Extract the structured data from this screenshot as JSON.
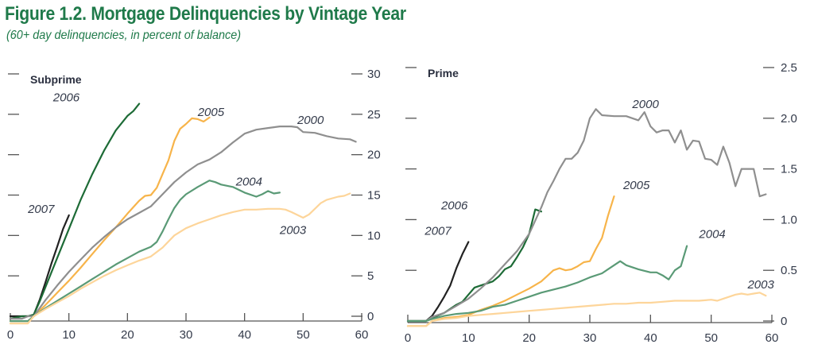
{
  "title": "Figure 1.2. Mortgage Delinquencies by Vintage Year",
  "subtitle": "(60+ day delinquencies, in percent of balance)",
  "colors": {
    "title": "#1f7a4a",
    "2000": "#8f8f8f",
    "2003": "#fdd59a",
    "2004": "#5a9a76",
    "2005": "#f7b44a",
    "2006": "#1d6b36",
    "2007": "#222222"
  },
  "chart_data": [
    {
      "type": "line",
      "title": "Subprime",
      "xlabel": "",
      "ylabel": "",
      "xlim": [
        0,
        60
      ],
      "ylim": [
        0,
        30
      ],
      "x_ticks": [
        0,
        10,
        20,
        30,
        40,
        50,
        60
      ],
      "y_ticks": [
        0,
        5,
        10,
        15,
        20,
        25,
        30
      ],
      "y_tick_labels": [
        "0",
        "5",
        "10",
        "15",
        "20",
        "25",
        "30"
      ],
      "grid": false,
      "series": [
        {
          "name": "2007",
          "label_at": [
            3,
            12.8
          ],
          "x": [
            0,
            2,
            3,
            4,
            5,
            6,
            7,
            8,
            9,
            10
          ],
          "y": [
            0,
            0,
            0,
            0.2,
            2,
            4.2,
            6.5,
            8.6,
            10.8,
            12.5
          ]
        },
        {
          "name": "2006",
          "label_at": [
            7.3,
            26.6
          ],
          "x": [
            0,
            2,
            3,
            4,
            5,
            6,
            8,
            10,
            12,
            14,
            16,
            18,
            20,
            21,
            22
          ],
          "y": [
            -0.3,
            0,
            0,
            0.2,
            1.8,
            3.6,
            7.2,
            10.8,
            14.4,
            17.6,
            20.5,
            23,
            24.8,
            25.4,
            26.3
          ]
        },
        {
          "name": "2005",
          "label_at": [
            32,
            24.8
          ],
          "x": [
            0,
            2,
            3,
            4,
            6,
            8,
            10,
            12,
            14,
            16,
            18,
            20,
            22,
            23,
            24,
            25,
            26,
            27,
            28,
            29,
            30,
            31,
            32,
            33,
            34
          ],
          "y": [
            -0.6,
            -0.6,
            -0.6,
            0,
            1.4,
            2.9,
            4.4,
            6,
            7.7,
            9.4,
            11,
            12.7,
            14.3,
            14.9,
            15,
            15.9,
            17.6,
            19.3,
            21.7,
            23.2,
            23.8,
            24.5,
            24.4,
            24.1,
            24.6
          ]
        },
        {
          "name": "2000",
          "label_at": [
            49,
            23.8
          ],
          "x": [
            0,
            2,
            3,
            4,
            6,
            8,
            10,
            12,
            14,
            16,
            18,
            20,
            22,
            24,
            26,
            28,
            30,
            32,
            34,
            36,
            38,
            40,
            42,
            44,
            46,
            48,
            49,
            50,
            52,
            54,
            56,
            58,
            59
          ],
          "y": [
            -0.3,
            -0.3,
            0,
            0,
            2,
            3.8,
            5.5,
            7,
            8.5,
            9.8,
            11,
            12,
            12.8,
            13.6,
            15.1,
            16.6,
            17.8,
            18.8,
            19.4,
            20.3,
            21.5,
            22.6,
            23.1,
            23.3,
            23.5,
            23.5,
            23.4,
            22.8,
            22.7,
            22.3,
            22,
            21.9,
            21.6
          ]
        },
        {
          "name": "2004",
          "label_at": [
            38.5,
            16.2
          ],
          "x": [
            0,
            2,
            3,
            4,
            6,
            8,
            10,
            12,
            14,
            16,
            18,
            20,
            22,
            24,
            25,
            26,
            27,
            28,
            29,
            30,
            32,
            34,
            35,
            36,
            38,
            40,
            42,
            43,
            44,
            45,
            46
          ],
          "y": [
            -0.6,
            -0.6,
            -0.6,
            0,
            1,
            1.9,
            2.8,
            3.7,
            4.6,
            5.5,
            6.4,
            7.2,
            8,
            8.6,
            9.2,
            10.5,
            12,
            13.4,
            14.4,
            15.1,
            16,
            16.8,
            16.6,
            16.3,
            16,
            15.3,
            14.8,
            15.1,
            15.5,
            15.2,
            15.3
          ]
        },
        {
          "name": "2003",
          "label_at": [
            46,
            10.2
          ],
          "x": [
            0,
            2,
            3,
            4,
            6,
            8,
            10,
            12,
            14,
            16,
            18,
            20,
            22,
            24,
            26,
            28,
            30,
            32,
            34,
            36,
            38,
            40,
            42,
            44,
            46,
            47,
            48,
            50,
            51,
            52,
            53,
            54,
            56,
            57,
            58
          ],
          "y": [
            -0.9,
            -0.9,
            -0.9,
            0,
            0.9,
            1.7,
            2.5,
            3.4,
            4.2,
            5,
            5.7,
            6.3,
            6.9,
            7.4,
            8.5,
            10,
            10.9,
            11.5,
            12,
            12.5,
            12.9,
            13.2,
            13.2,
            13.3,
            13.3,
            13.2,
            12.9,
            12.2,
            12.6,
            13.3,
            14,
            14.4,
            14.8,
            14.9,
            15.2
          ]
        }
      ]
    },
    {
      "type": "line",
      "title": "Prime",
      "xlabel": "",
      "ylabel": "",
      "xlim": [
        0,
        60
      ],
      "ylim": [
        0,
        2.5
      ],
      "x_ticks": [
        0,
        10,
        20,
        30,
        40,
        50,
        60
      ],
      "y_ticks": [
        0,
        0.5,
        1.0,
        1.5,
        2.0,
        2.5
      ],
      "y_tick_labels": [
        "0",
        "0.5",
        "1.0",
        "1.5",
        "2.0",
        "2.5"
      ],
      "grid": false,
      "series": [
        {
          "name": "2007",
          "label_at": [
            2.8,
            0.85
          ],
          "x": [
            0,
            2,
            3,
            4,
            5,
            6,
            7,
            8,
            9,
            10
          ],
          "y": [
            0,
            0,
            0,
            0.05,
            0.14,
            0.24,
            0.35,
            0.52,
            0.66,
            0.78
          ]
        },
        {
          "name": "2006",
          "label_at": [
            5.5,
            1.1
          ],
          "x": [
            0,
            2,
            3,
            4,
            6,
            8,
            9,
            10,
            11,
            12,
            13,
            14,
            15,
            16,
            17,
            18,
            19,
            20,
            21,
            22
          ],
          "y": [
            0,
            0,
            0,
            0.03,
            0.08,
            0.16,
            0.19,
            0.26,
            0.33,
            0.35,
            0.37,
            0.39,
            0.44,
            0.51,
            0.54,
            0.63,
            0.73,
            0.86,
            1.1,
            1.08
          ]
        },
        {
          "name": "2000",
          "label_at": [
            37,
            2.1
          ],
          "x": [
            0,
            2,
            3,
            4,
            6,
            8,
            10,
            12,
            14,
            16,
            18,
            20,
            22,
            23,
            24,
            25,
            26,
            27,
            28,
            29,
            30,
            31,
            32,
            34,
            36,
            37,
            38,
            39,
            40,
            41,
            42,
            43,
            44,
            45,
            46,
            47,
            48,
            49,
            50,
            51,
            52,
            53,
            54,
            55,
            56,
            57,
            58,
            59
          ],
          "y": [
            0,
            0,
            0,
            0.04,
            0.08,
            0.15,
            0.22,
            0.32,
            0.43,
            0.56,
            0.69,
            0.86,
            1.12,
            1.27,
            1.38,
            1.5,
            1.6,
            1.6,
            1.66,
            1.78,
            2.0,
            2.09,
            2.03,
            2.02,
            2.02,
            2.0,
            1.98,
            2.06,
            1.92,
            1.86,
            1.88,
            1.88,
            1.76,
            1.88,
            1.69,
            1.78,
            1.77,
            1.6,
            1.59,
            1.54,
            1.72,
            1.56,
            1.33,
            1.5,
            1.5,
            1.5,
            1.23,
            1.25
          ]
        },
        {
          "name": "2005",
          "label_at": [
            35.5,
            1.3
          ],
          "x": [
            0,
            2,
            3,
            4,
            6,
            8,
            10,
            12,
            14,
            16,
            18,
            20,
            22,
            24,
            25,
            26,
            27,
            28,
            29,
            30,
            31,
            32,
            33,
            34
          ],
          "y": [
            -0.05,
            -0.05,
            -0.05,
            0,
            0.03,
            0.04,
            0.06,
            0.11,
            0.15,
            0.2,
            0.26,
            0.32,
            0.39,
            0.5,
            0.52,
            0.5,
            0.51,
            0.54,
            0.58,
            0.59,
            0.71,
            0.82,
            1.04,
            1.23
          ]
        },
        {
          "name": "2004",
          "label_at": [
            48,
            0.82
          ],
          "x": [
            0,
            2,
            3,
            4,
            6,
            8,
            10,
            12,
            14,
            16,
            18,
            20,
            22,
            24,
            26,
            28,
            30,
            32,
            34,
            35,
            36,
            38,
            40,
            41,
            42,
            43,
            44,
            45,
            46
          ],
          "y": [
            0,
            0,
            0,
            0.02,
            0.05,
            0.07,
            0.08,
            0.1,
            0.14,
            0.16,
            0.2,
            0.24,
            0.28,
            0.31,
            0.34,
            0.38,
            0.43,
            0.47,
            0.55,
            0.59,
            0.55,
            0.51,
            0.48,
            0.48,
            0.45,
            0.41,
            0.5,
            0.54,
            0.74
          ]
        },
        {
          "name": "2003",
          "label_at": [
            56,
            0.32
          ],
          "x": [
            0,
            2,
            3,
            4,
            6,
            8,
            10,
            12,
            14,
            16,
            18,
            20,
            22,
            24,
            26,
            28,
            30,
            32,
            34,
            36,
            38,
            40,
            42,
            44,
            46,
            48,
            50,
            51,
            52,
            54,
            55,
            56,
            57,
            58,
            59
          ],
          "y": [
            -0.05,
            -0.05,
            -0.05,
            0,
            0.02,
            0.03,
            0.05,
            0.06,
            0.07,
            0.08,
            0.09,
            0.1,
            0.11,
            0.12,
            0.13,
            0.14,
            0.15,
            0.16,
            0.17,
            0.17,
            0.18,
            0.18,
            0.19,
            0.2,
            0.2,
            0.2,
            0.21,
            0.2,
            0.22,
            0.26,
            0.27,
            0.26,
            0.27,
            0.28,
            0.25
          ]
        }
      ]
    }
  ]
}
